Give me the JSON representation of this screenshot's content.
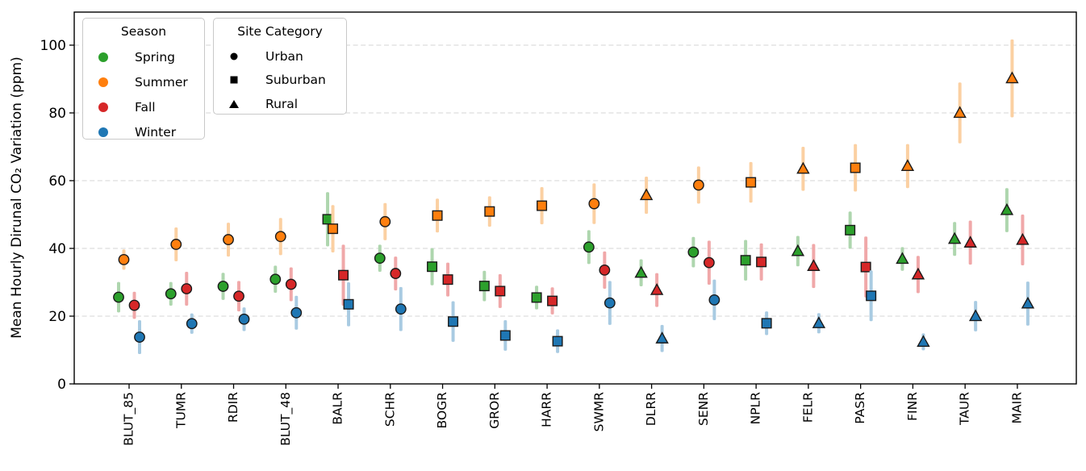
{
  "chart_data": {
    "type": "scatter",
    "title": "",
    "xlabel": "",
    "ylabel": "Mean Hourly Dirunal CO₂ Variation (ppm)",
    "ylim": [
      0,
      110
    ],
    "yticks": [
      0,
      20,
      40,
      60,
      80,
      100
    ],
    "grid": "horizontal dashed gridlines",
    "legend_position": "upper left, two boxes",
    "legend": {
      "season": {
        "title": "Season"
      },
      "site_category": {
        "title": "Site Category",
        "entries": [
          {
            "label": "Urban",
            "marker": "circle"
          },
          {
            "label": "Suburban",
            "marker": "square"
          },
          {
            "label": "Rural",
            "marker": "triangle"
          }
        ]
      }
    },
    "series": [
      {
        "name": "Spring",
        "color": "#2ca02c",
        "errbar_color": "#aed6ae"
      },
      {
        "name": "Summer",
        "color": "#ff7f0e",
        "errbar_color": "#fbd0a2"
      },
      {
        "name": "Fall",
        "color": "#d62728",
        "errbar_color": "#f0a8a9"
      },
      {
        "name": "Winter",
        "color": "#1f77b4",
        "errbar_color": "#a9cbe2"
      }
    ],
    "categories_marker_map": {
      "Urban": "circle",
      "Suburban": "square",
      "Rural": "triangle"
    },
    "sites": [
      {
        "name": "BLUT_85",
        "category": "Urban",
        "values": [
          25.6,
          36.7,
          23.2,
          13.8
        ],
        "errors": [
          4.5,
          3.0,
          4.0,
          5.0
        ]
      },
      {
        "name": "TUMR",
        "category": "Urban",
        "values": [
          26.6,
          41.2,
          28.1,
          17.8
        ],
        "errors": [
          3.5,
          5.0,
          5.0,
          3.0
        ]
      },
      {
        "name": "RDIR",
        "category": "Urban",
        "values": [
          28.8,
          42.6,
          25.9,
          19.1
        ],
        "errors": [
          4.0,
          5.0,
          4.5,
          3.5
        ]
      },
      {
        "name": "BLUT_48",
        "category": "Urban",
        "values": [
          30.9,
          43.5,
          29.4,
          21.0
        ],
        "errors": [
          4.0,
          5.5,
          5.0,
          5.0
        ]
      },
      {
        "name": "BALR",
        "category": "Suburban",
        "values": [
          48.6,
          45.8,
          32.1,
          23.5
        ],
        "errors": [
          8.0,
          7.0,
          9.0,
          6.5
        ]
      },
      {
        "name": "SCHR",
        "category": "Urban",
        "values": [
          37.1,
          47.9,
          32.6,
          22.1
        ],
        "errors": [
          4.0,
          5.5,
          5.0,
          6.5
        ]
      },
      {
        "name": "BOGR",
        "category": "Suburban",
        "values": [
          34.6,
          49.7,
          30.8,
          18.4
        ],
        "errors": [
          5.5,
          5.0,
          5.0,
          6.0
        ]
      },
      {
        "name": "GROR",
        "category": "Suburban",
        "values": [
          28.9,
          50.9,
          27.4,
          14.3
        ],
        "errors": [
          4.5,
          4.5,
          5.0,
          4.5
        ]
      },
      {
        "name": "HARR",
        "category": "Suburban",
        "values": [
          25.5,
          52.6,
          24.5,
          12.6
        ],
        "errors": [
          3.5,
          5.5,
          4.0,
          3.5
        ]
      },
      {
        "name": "SWMR",
        "category": "Urban",
        "values": [
          40.4,
          53.2,
          33.6,
          23.9
        ],
        "errors": [
          5.0,
          6.0,
          5.5,
          6.5
        ]
      },
      {
        "name": "DLRR",
        "category": "Rural",
        "values": [
          32.8,
          55.7,
          27.7,
          13.4
        ],
        "errors": [
          4.0,
          5.5,
          5.0,
          4.0
        ]
      },
      {
        "name": "SENR",
        "category": "Urban",
        "values": [
          38.9,
          58.7,
          35.8,
          24.8
        ],
        "errors": [
          4.5,
          5.5,
          6.5,
          6.0
        ]
      },
      {
        "name": "NPLR",
        "category": "Suburban",
        "values": [
          36.5,
          59.5,
          36.0,
          17.9
        ],
        "errors": [
          6.0,
          6.0,
          5.5,
          3.5
        ]
      },
      {
        "name": "FELR",
        "category": "Rural",
        "values": [
          39.2,
          63.5,
          34.8,
          17.9
        ],
        "errors": [
          4.5,
          6.5,
          6.5,
          3.0
        ]
      },
      {
        "name": "PASR",
        "category": "Suburban",
        "values": [
          45.4,
          63.8,
          34.5,
          26.0
        ],
        "errors": [
          5.5,
          7.0,
          9.0,
          7.5
        ]
      },
      {
        "name": "FINR",
        "category": "Rural",
        "values": [
          36.9,
          64.3,
          32.3,
          12.4
        ],
        "errors": [
          3.5,
          6.5,
          5.5,
          2.5
        ]
      },
      {
        "name": "TAUR",
        "category": "Rural",
        "values": [
          42.8,
          80.0,
          41.7,
          20.0
        ],
        "errors": [
          5.0,
          9.0,
          6.5,
          4.5
        ]
      },
      {
        "name": "MAIR",
        "category": "Rural",
        "values": [
          51.3,
          90.2,
          42.5,
          23.7
        ],
        "errors": [
          6.5,
          11.5,
          7.5,
          6.5
        ]
      }
    ]
  }
}
